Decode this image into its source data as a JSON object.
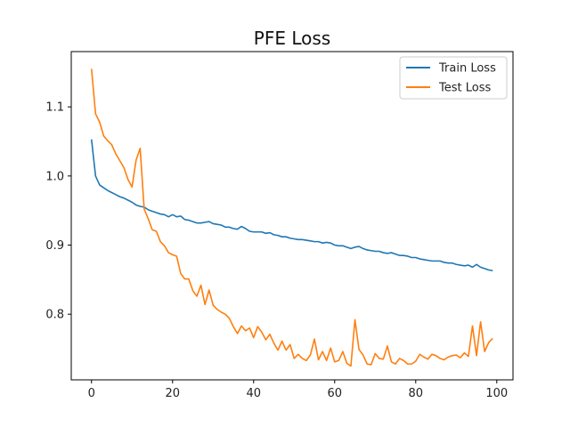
{
  "chart_data": {
    "type": "line",
    "title": "PFE Loss",
    "xlabel": "",
    "ylabel": "",
    "xlim": [
      -5,
      104
    ],
    "ylim": [
      0.705,
      1.18
    ],
    "xticks": [
      0,
      20,
      40,
      60,
      80,
      100
    ],
    "yticks": [
      0.8,
      0.9,
      1.0,
      1.1
    ],
    "xtick_labels": [
      "0",
      "20",
      "40",
      "60",
      "80",
      "100"
    ],
    "ytick_labels": [
      "0.8",
      "0.9",
      "1.0",
      "1.1"
    ],
    "grid": false,
    "legend": "top-right",
    "series": [
      {
        "name": "Train Loss",
        "color": "#1f77b4",
        "values": [
          1.053,
          1.0,
          0.987,
          0.983,
          0.979,
          0.976,
          0.973,
          0.97,
          0.968,
          0.965,
          0.962,
          0.958,
          0.956,
          0.955,
          0.951,
          0.949,
          0.947,
          0.945,
          0.944,
          0.941,
          0.944,
          0.941,
          0.942,
          0.937,
          0.936,
          0.934,
          0.932,
          0.932,
          0.933,
          0.934,
          0.931,
          0.93,
          0.929,
          0.926,
          0.926,
          0.924,
          0.923,
          0.927,
          0.924,
          0.92,
          0.919,
          0.919,
          0.919,
          0.917,
          0.918,
          0.915,
          0.914,
          0.912,
          0.912,
          0.91,
          0.909,
          0.908,
          0.908,
          0.907,
          0.906,
          0.905,
          0.905,
          0.903,
          0.904,
          0.903,
          0.9,
          0.899,
          0.899,
          0.897,
          0.895,
          0.897,
          0.898,
          0.895,
          0.893,
          0.892,
          0.891,
          0.891,
          0.889,
          0.888,
          0.889,
          0.887,
          0.885,
          0.885,
          0.884,
          0.882,
          0.882,
          0.88,
          0.879,
          0.878,
          0.877,
          0.877,
          0.877,
          0.875,
          0.874,
          0.874,
          0.872,
          0.871,
          0.87,
          0.871,
          0.868,
          0.872,
          0.868,
          0.866,
          0.864,
          0.863
        ]
      },
      {
        "name": "Test Loss",
        "color": "#ff7f0e",
        "values": [
          1.155,
          1.09,
          1.078,
          1.058,
          1.051,
          1.045,
          1.032,
          1.022,
          1.012,
          0.995,
          0.984,
          1.023,
          1.04,
          0.952,
          0.938,
          0.922,
          0.92,
          0.905,
          0.899,
          0.889,
          0.886,
          0.884,
          0.859,
          0.851,
          0.851,
          0.834,
          0.826,
          0.842,
          0.814,
          0.835,
          0.813,
          0.807,
          0.803,
          0.8,
          0.794,
          0.782,
          0.772,
          0.783,
          0.776,
          0.78,
          0.766,
          0.782,
          0.774,
          0.763,
          0.771,
          0.758,
          0.748,
          0.761,
          0.748,
          0.756,
          0.736,
          0.742,
          0.736,
          0.733,
          0.741,
          0.764,
          0.734,
          0.746,
          0.733,
          0.751,
          0.731,
          0.733,
          0.746,
          0.729,
          0.725,
          0.792,
          0.749,
          0.741,
          0.728,
          0.727,
          0.743,
          0.736,
          0.735,
          0.754,
          0.731,
          0.728,
          0.736,
          0.733,
          0.728,
          0.728,
          0.732,
          0.742,
          0.738,
          0.735,
          0.742,
          0.74,
          0.736,
          0.734,
          0.738,
          0.74,
          0.741,
          0.737,
          0.744,
          0.739,
          0.783,
          0.74,
          0.789,
          0.746,
          0.759,
          0.765
        ]
      }
    ]
  }
}
